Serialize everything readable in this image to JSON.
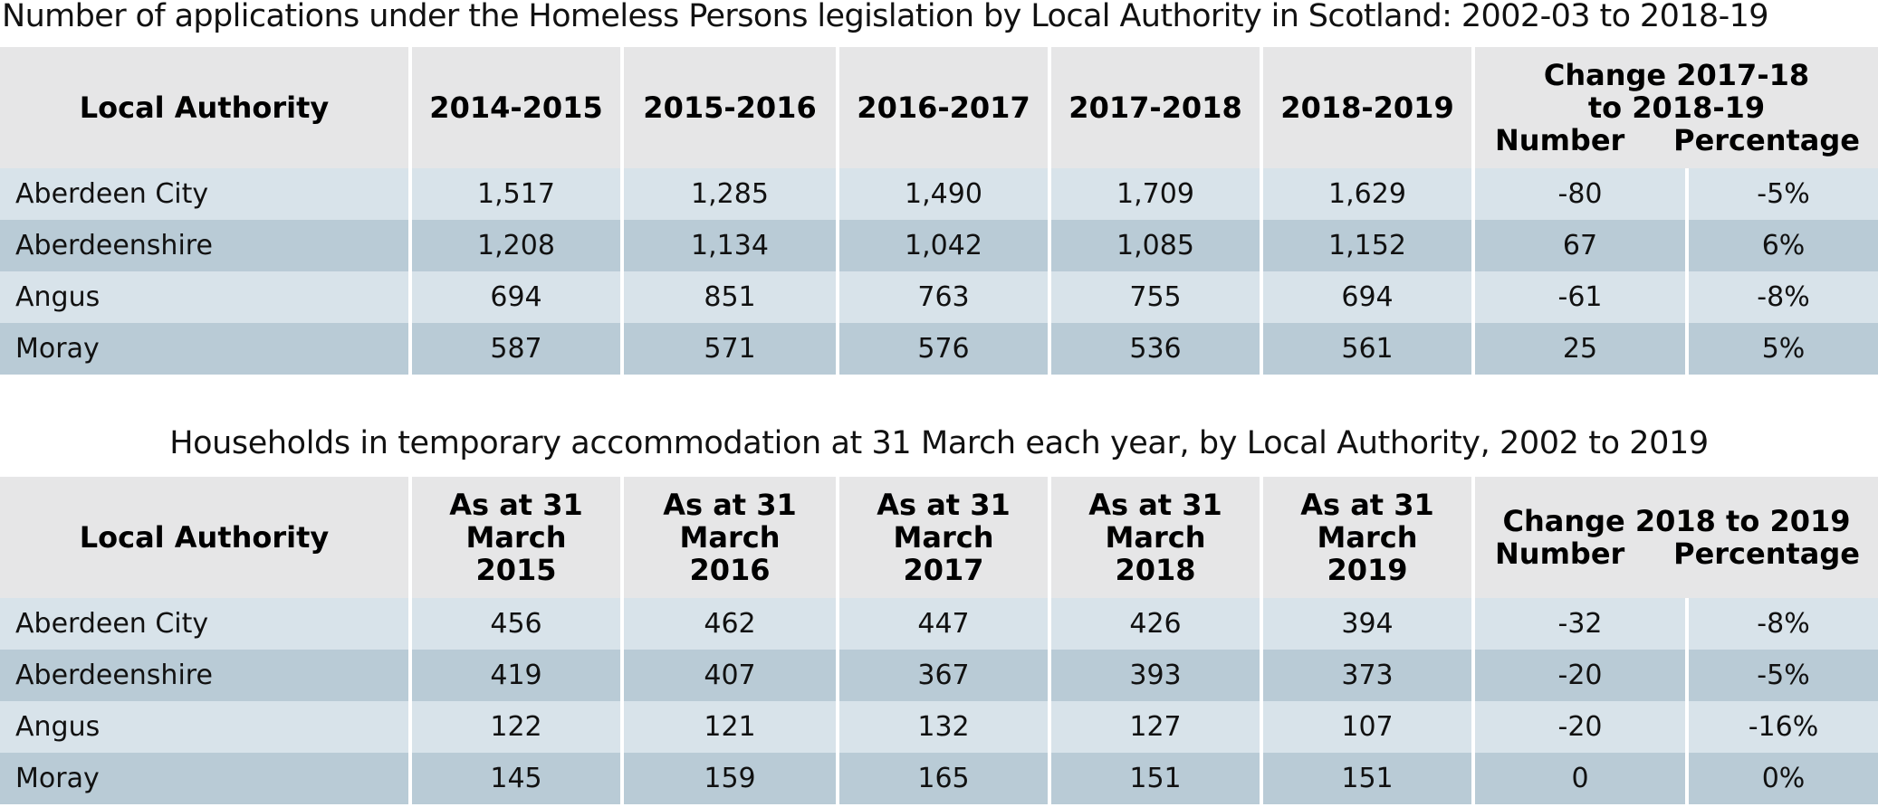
{
  "applications": {
    "title": "Number of applications under the Homeless Persons legislation by Local Authority in Scotland: 2002-03 to 2018-19",
    "columns": [
      "Local Authority",
      "2014-2015",
      "2015-2016",
      "2016-2017",
      "2017-2018",
      "2018-2019"
    ],
    "change_header": {
      "line1": "Change 2017-18",
      "line2": "to 2018-19",
      "number": "Number",
      "percentage": "Percentage"
    },
    "rows": [
      {
        "authority": "Aberdeen City",
        "values": [
          "1,517",
          "1,285",
          "1,490",
          "1,709",
          "1,629"
        ],
        "change_number": "-80",
        "change_percentage": "-5%"
      },
      {
        "authority": "Aberdeenshire",
        "values": [
          "1,208",
          "1,134",
          "1,042",
          "1,085",
          "1,152"
        ],
        "change_number": "67",
        "change_percentage": "6%"
      },
      {
        "authority": "Angus",
        "values": [
          "694",
          "851",
          "763",
          "755",
          "694"
        ],
        "change_number": "-61",
        "change_percentage": "-8%"
      },
      {
        "authority": "Moray",
        "values": [
          "587",
          "571",
          "576",
          "536",
          "561"
        ],
        "change_number": "25",
        "change_percentage": "5%"
      }
    ]
  },
  "temporary": {
    "title": "Households in temporary accommodation at 31 March each year, by Local Authority, 2002 to 2019",
    "columns": [
      "Local Authority",
      {
        "l1": "As at 31",
        "l2": "March",
        "l3": "2015"
      },
      {
        "l1": "As at 31",
        "l2": "March",
        "l3": "2016"
      },
      {
        "l1": "As at 31",
        "l2": "March",
        "l3": "2017"
      },
      {
        "l1": "As at 31",
        "l2": "March",
        "l3": "2018"
      },
      {
        "l1": "As at 31",
        "l2": "March",
        "l3": "2019"
      }
    ],
    "change_header": {
      "line1": "Change 2018 to 2019",
      "number": "Number",
      "percentage": "Percentage"
    },
    "rows": [
      {
        "authority": "Aberdeen City",
        "values": [
          "456",
          "462",
          "447",
          "426",
          "394"
        ],
        "change_number": "-32",
        "change_percentage": "-8%"
      },
      {
        "authority": "Aberdeenshire",
        "values": [
          "419",
          "407",
          "367",
          "393",
          "373"
        ],
        "change_number": "-20",
        "change_percentage": "-5%"
      },
      {
        "authority": "Angus",
        "values": [
          "122",
          "121",
          "132",
          "127",
          "107"
        ],
        "change_number": "-20",
        "change_percentage": "-16%"
      },
      {
        "authority": "Moray",
        "values": [
          "145",
          "159",
          "165",
          "151",
          "151"
        ],
        "change_number": "0",
        "change_percentage": "0%"
      }
    ]
  }
}
